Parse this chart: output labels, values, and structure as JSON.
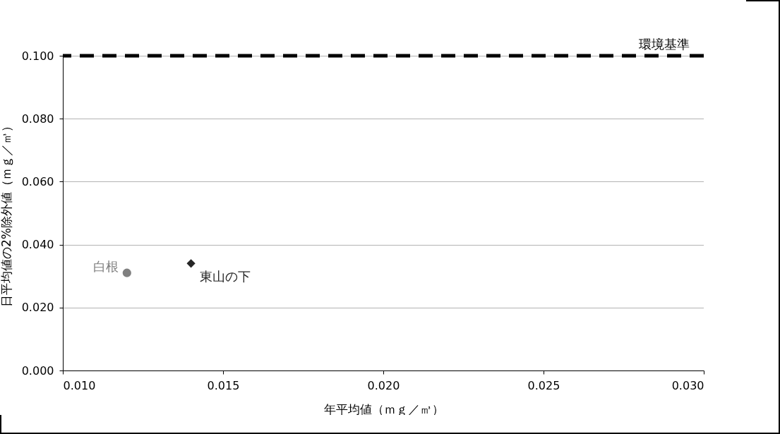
{
  "chart_data": {
    "type": "scatter",
    "xlabel": "年平均値（ｍｇ／㎥）",
    "ylabel": "日平均値の2%除外値（ｍｇ／㎥）",
    "xlim": [
      0.01,
      0.03
    ],
    "ylim": [
      0.0,
      0.1
    ],
    "xticks": [
      {
        "value": 0.01,
        "label": "0.010"
      },
      {
        "value": 0.015,
        "label": "0.015"
      },
      {
        "value": 0.02,
        "label": "0.020"
      },
      {
        "value": 0.025,
        "label": "0.025"
      },
      {
        "value": 0.03,
        "label": "0.030"
      }
    ],
    "yticks": [
      {
        "value": 0.0,
        "label": "0.000"
      },
      {
        "value": 0.02,
        "label": "0.020"
      },
      {
        "value": 0.04,
        "label": "0.040"
      },
      {
        "value": 0.06,
        "label": "0.060"
      },
      {
        "value": 0.08,
        "label": "0.080"
      },
      {
        "value": 0.1,
        "label": "0.100"
      }
    ],
    "grid": "y",
    "legend": false,
    "series": [
      {
        "name": "白根",
        "color": "#808080",
        "marker": "circle",
        "x": [
          0.012
        ],
        "values": [
          0.031
        ]
      },
      {
        "name": "東山の下",
        "color": "#262626",
        "marker": "diamond",
        "x": [
          0.014
        ],
        "values": [
          0.034
        ]
      }
    ],
    "ref_lines": [
      {
        "axis": "y",
        "value": 0.1,
        "label": "環境基準",
        "color": "#000000",
        "line_style": "dashed"
      }
    ]
  }
}
